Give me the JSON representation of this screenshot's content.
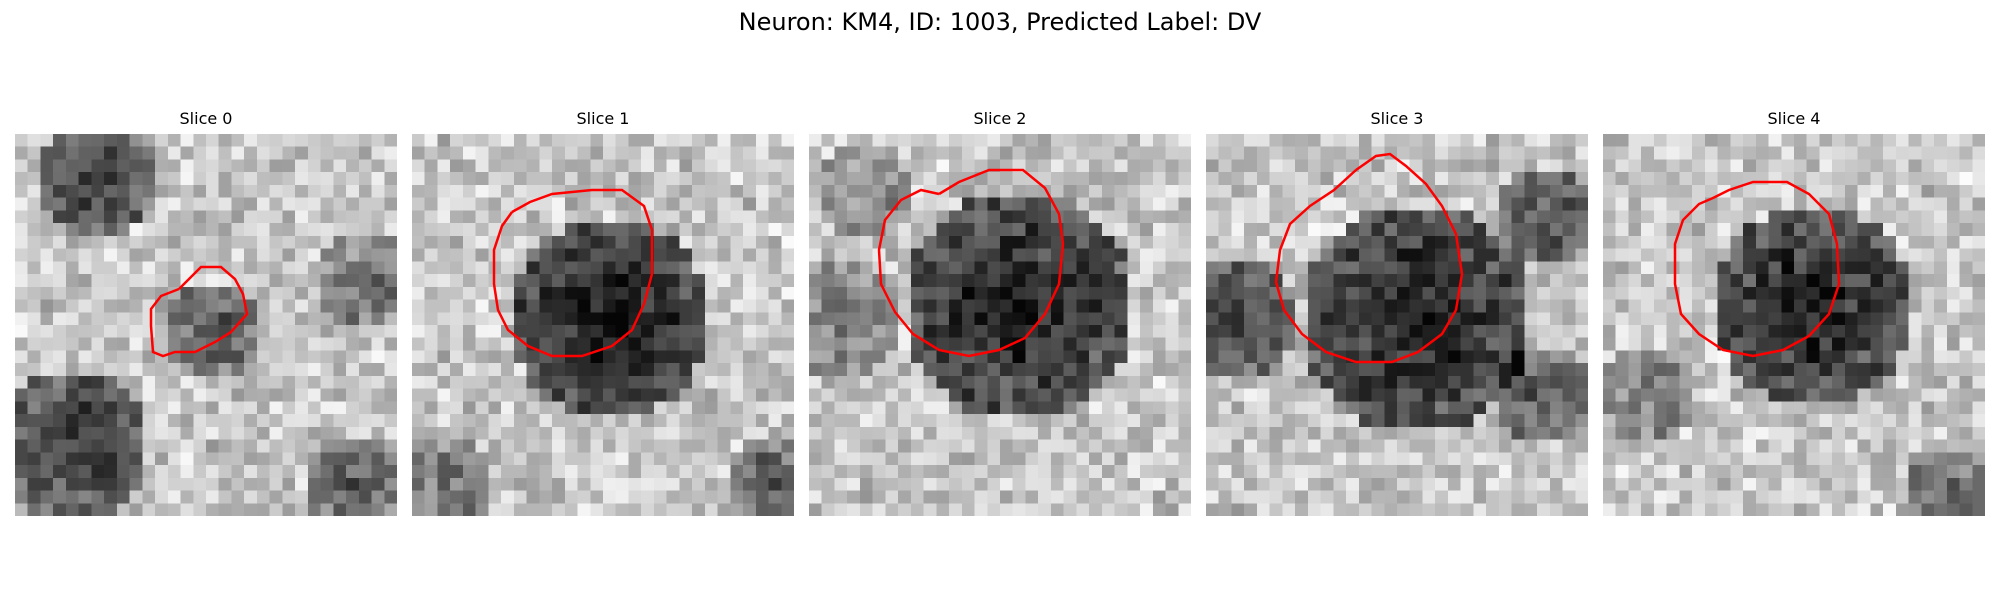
{
  "figure": {
    "title": "Neuron: KM4, ID: 1003, Predicted Label: DV"
  },
  "colors": {
    "contour": "#ff0000",
    "background": "#ffffff"
  },
  "panels": [
    {
      "title": "Slice 0"
    },
    {
      "title": "Slice 1"
    },
    {
      "title": "Slice 2"
    },
    {
      "title": "Slice 3"
    },
    {
      "title": "Slice 4"
    }
  ]
}
